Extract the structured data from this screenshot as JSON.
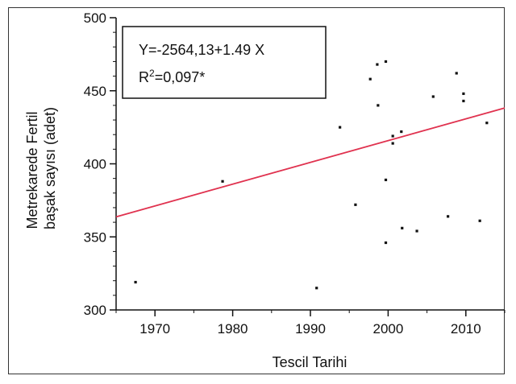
{
  "chart_data": {
    "type": "scatter",
    "xlabel": "Tescil Tarihi",
    "ylabel_lines": [
      "Metrekarede Fertil",
      "başak sayısı (adet)"
    ],
    "xlim": [
      1965,
      2015
    ],
    "ylim": [
      300,
      500
    ],
    "xticks": [
      1970,
      1980,
      1990,
      2000,
      2010
    ],
    "yticks": [
      300,
      350,
      400,
      450,
      500
    ],
    "grid": false,
    "colors": {
      "points": "#111111",
      "regression_line": "#e0324f",
      "axes": "#111111"
    },
    "annotation": {
      "equation": "Y=-2564,13+1.49 X",
      "r2_prefix": "R",
      "r2_sup": "2",
      "r2_value": "=0,097*"
    },
    "regression": {
      "intercept": -2564.13,
      "slope": 1.49,
      "x_range": [
        1965,
        2015
      ]
    },
    "points": [
      {
        "x": 1967.5,
        "y": 319
      },
      {
        "x": 1978.7,
        "y": 388
      },
      {
        "x": 1990.8,
        "y": 315
      },
      {
        "x": 1993.8,
        "y": 425
      },
      {
        "x": 1995.8,
        "y": 372
      },
      {
        "x": 1997.7,
        "y": 458
      },
      {
        "x": 1998.6,
        "y": 468
      },
      {
        "x": 1998.7,
        "y": 440
      },
      {
        "x": 1999.7,
        "y": 470
      },
      {
        "x": 1999.7,
        "y": 389
      },
      {
        "x": 1999.7,
        "y": 346
      },
      {
        "x": 2000.6,
        "y": 419
      },
      {
        "x": 2000.6,
        "y": 414
      },
      {
        "x": 2001.7,
        "y": 422
      },
      {
        "x": 2001.8,
        "y": 356
      },
      {
        "x": 2003.7,
        "y": 354
      },
      {
        "x": 2005.8,
        "y": 446
      },
      {
        "x": 2007.7,
        "y": 364
      },
      {
        "x": 2008.8,
        "y": 462
      },
      {
        "x": 2009.7,
        "y": 448
      },
      {
        "x": 2009.7,
        "y": 443
      },
      {
        "x": 2011.8,
        "y": 361
      },
      {
        "x": 2012.7,
        "y": 428
      }
    ]
  }
}
